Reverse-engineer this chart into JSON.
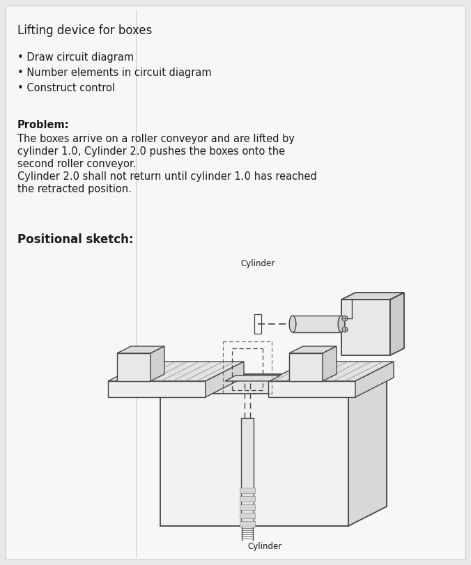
{
  "title": "Lifting device for boxes",
  "bullets": [
    "Draw circuit diagram",
    "Number elements in circuit diagram",
    "Construct control"
  ],
  "problem_label": "Problem:",
  "problem_lines": [
    "The boxes arrive on a roller conveyor and are lifted by",
    "cylinder 1.0, Cylinder 2.0 pushes the boxes onto the",
    "second roller conveyor.",
    "Cylinder 2.0 shall not return until cylinder 1.0 has reached",
    "the retracted position."
  ],
  "sketch_label": "Positional sketch:",
  "cylinder_top_label": "Cylinder",
  "cylinder_bottom_label": "Cylinder",
  "bg_color": "#e8e8e8",
  "paper_color": "#f7f7f7",
  "text_color": "#1a1a1a",
  "title_fontsize": 12,
  "body_fontsize": 10.5,
  "sketch_label_fontsize": 12
}
